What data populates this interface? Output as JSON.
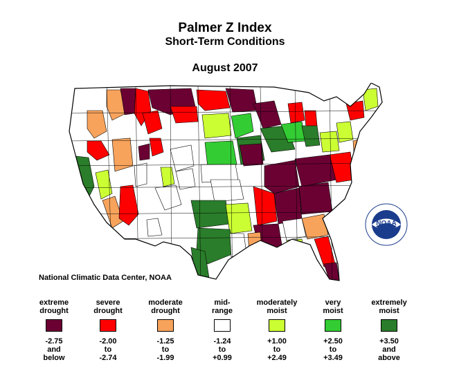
{
  "title": "Palmer Z Index",
  "subtitle": "Short-Term Conditions",
  "date": "August 2007",
  "credit": "National Climatic Data Center, NOAA",
  "logo": {
    "icon": "noaa-logo-icon",
    "text": "NOAA"
  },
  "colors": {
    "extreme_drought": "#6b0033",
    "severe_drought": "#ff0000",
    "moderate_drought": "#f7a35c",
    "mid_range": "#ffffff",
    "moderately_moist": "#ccff33",
    "very_moist": "#33cc33",
    "extremely_moist": "#2a7d2a"
  },
  "legend": [
    {
      "line1": "extreme",
      "line2": "drought",
      "range1": "-2.75",
      "range2": "and",
      "range3": "below",
      "color": "#6b0033"
    },
    {
      "line1": "severe",
      "line2": "drought",
      "range1": "-2.00",
      "range2": "to",
      "range3": "-2.74",
      "color": "#ff0000"
    },
    {
      "line1": "moderate",
      "line2": "drought",
      "range1": "-1.25",
      "range2": "to",
      "range3": "-1.99",
      "color": "#f7a35c"
    },
    {
      "line1": "mid-",
      "line2": "range",
      "range1": "-1.24",
      "range2": "to",
      "range3": "+0.99",
      "color": "#ffffff"
    },
    {
      "line1": "moderately",
      "line2": "moist",
      "range1": "+1.00",
      "range2": "to",
      "range3": "+2.49",
      "color": "#ccff33"
    },
    {
      "line1": "very",
      "line2": "moist",
      "range1": "+2.50",
      "range2": "to",
      "range3": "+3.49",
      "color": "#33cc33"
    },
    {
      "line1": "extremely",
      "line2": "moist",
      "range1": "+3.50",
      "range2": "and",
      "range3": "above",
      "color": "#2a7d2a"
    }
  ]
}
